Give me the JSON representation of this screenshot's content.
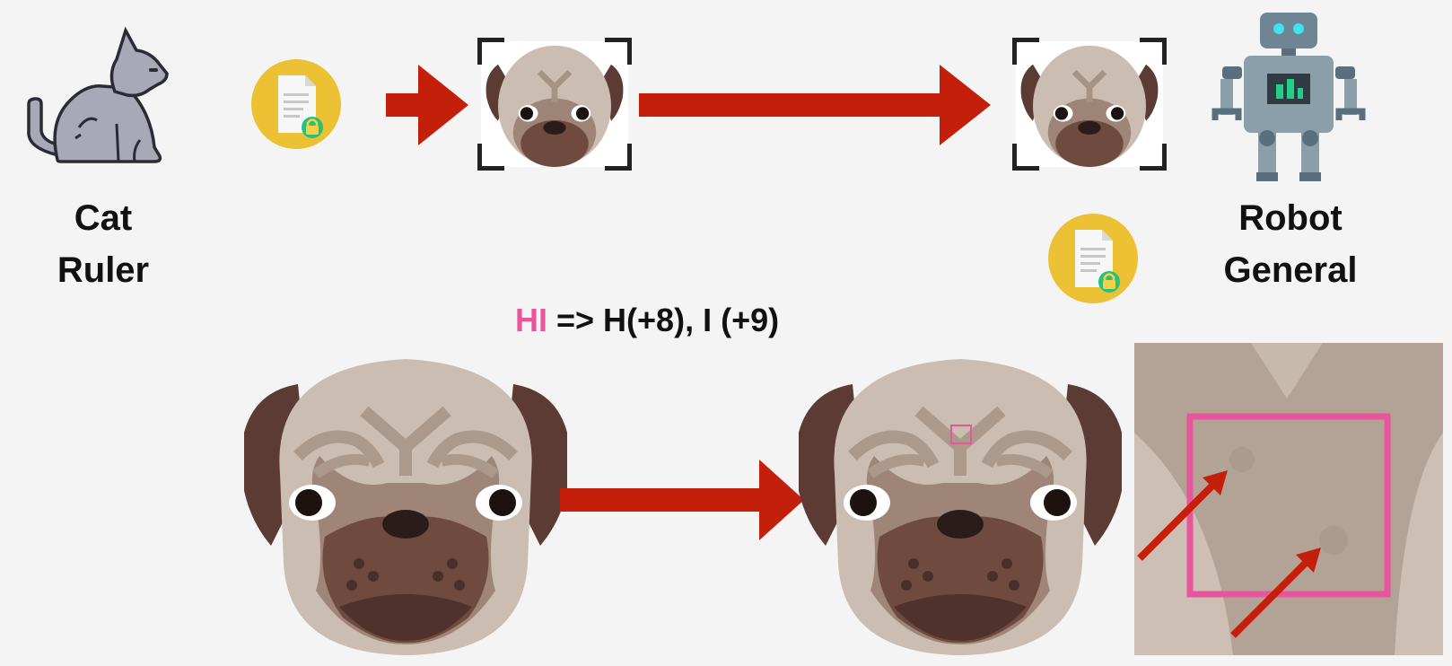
{
  "sender": {
    "line1": "Cat",
    "line2": "Ruler",
    "icon": "cat-icon"
  },
  "receiver": {
    "line1": "Robot",
    "line2": "General",
    "icon": "robot-icon"
  },
  "message_icon": "locked-document-icon",
  "equation": {
    "highlight": "HI",
    "rest": " => H(+8), I (+9)"
  },
  "colors": {
    "background": "#f4f4f4",
    "arrow": "#c41f0b",
    "highlight": "#e8559c",
    "badge": "#ecc133",
    "lock": "#25c27e"
  }
}
